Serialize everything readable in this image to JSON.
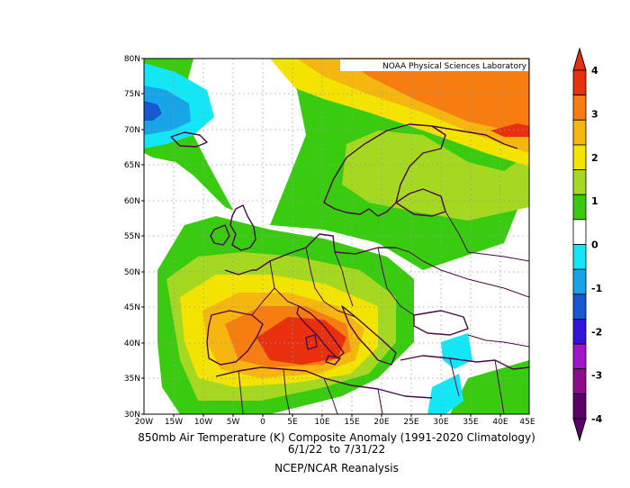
{
  "credit": "NOAA Physical Sciences Laboratory",
  "caption": {
    "line1": "850mb Air Temperature (K) Composite Anomaly (1991-2020 Climatology)",
    "line2": "6/1/22  to 7/31/22",
    "line3": "NCEP/NCAR Reanalysis"
  },
  "axes": {
    "lat_labels": [
      "80N",
      "75N",
      "70N",
      "65N",
      "60N",
      "55N",
      "50N",
      "45N",
      "40N",
      "35N",
      "30N"
    ],
    "lon_labels": [
      "20W",
      "15W",
      "10W",
      "5W",
      "0",
      "5E",
      "10E",
      "15E",
      "20E",
      "25E",
      "30E",
      "35E",
      "40E",
      "45E"
    ]
  },
  "colorbar": {
    "labels": [
      "4",
      "3",
      "2",
      "1",
      "0",
      "-1",
      "-2",
      "-3",
      "-4"
    ],
    "colors": [
      "#e8300f",
      "#f77d10",
      "#f6b610",
      "#f2e300",
      "#a5d820",
      "#39cb10",
      "#ffffff",
      "#13e6f5",
      "#17a5e8",
      "#1757d0",
      "#3312d9",
      "#a115c9",
      "#8c0c8c",
      "#5a0069"
    ]
  },
  "map": {
    "icons": [
      "coastline-lines",
      "country-borders",
      "anomaly-contour-fill",
      "dotted-gridlines"
    ]
  }
}
